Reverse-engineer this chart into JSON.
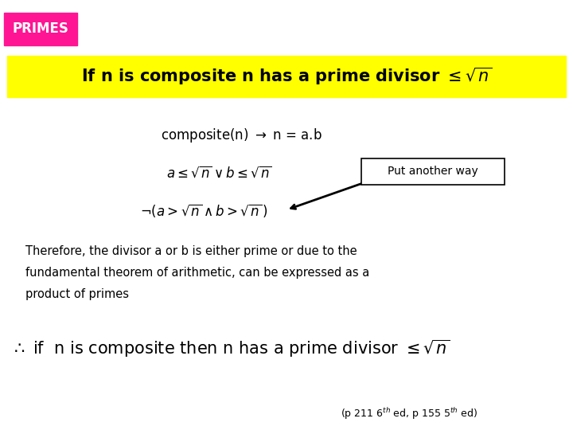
{
  "bg_color": "#ffffff",
  "primes_label": "PRIMES",
  "primes_bg": "#ff1493",
  "primes_text_color": "#ffffff",
  "highlight_bg": "#ffff00",
  "title_text": "If n is composite n has a prime divisor $\\leq \\sqrt{n}$",
  "line1": "composite(n) $\\rightarrow$ n = a.b",
  "line2": "$a \\leq \\sqrt{n} \\vee b \\leq \\sqrt{n}$",
  "line3": "$\\neg(a > \\sqrt{n} \\wedge b > \\sqrt{n}\\,)$",
  "callout_text": "Put another way",
  "body_text_line1": "Therefore, the divisor a or b is either prime or due to the",
  "body_text_line2": "fundamental theorem of arithmetic, can be expressed as a",
  "body_text_line3": "product of primes",
  "conclusion_text": "$\\therefore$ if  n is composite then n has a prime divisor $\\leq \\sqrt{n}$",
  "footnote_full": "(p 211 6$^{th}$ ed, p 155 5$^{th}$ ed)"
}
